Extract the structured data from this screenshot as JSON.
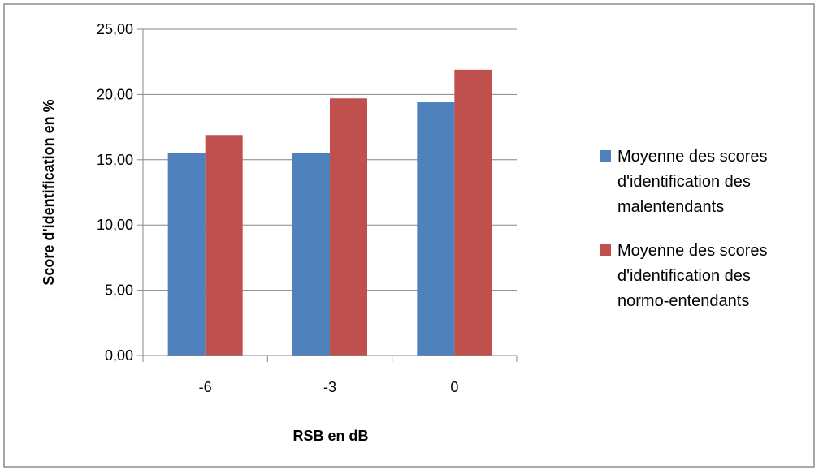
{
  "chart_data": {
    "type": "bar",
    "title": "",
    "xlabel": "RSB en dB",
    "ylabel": "Score d'identification en %",
    "categories": [
      "-6",
      "-3",
      "0"
    ],
    "series": [
      {
        "name": "Moyenne des scores d'identification des malentendants",
        "legend_lines": [
          "Moyenne des scores",
          "d'identification des",
          "malentendants"
        ],
        "color": "#4F81BD",
        "values": [
          15.5,
          15.5,
          19.4
        ]
      },
      {
        "name": "Moyenne des scores d'identification des normo-entendants",
        "legend_lines": [
          "Moyenne des scores",
          "d'identification des",
          "normo-entendants"
        ],
        "color": "#C0504D",
        "values": [
          16.9,
          19.7,
          21.9
        ]
      }
    ],
    "ylim": [
      0,
      25
    ],
    "yticks": [
      "0,00",
      "5,00",
      "10,00",
      "15,00",
      "20,00",
      "25,00"
    ],
    "ytick_values": [
      0,
      5,
      10,
      15,
      20,
      25
    ],
    "grid": true,
    "legend_position": "right"
  }
}
